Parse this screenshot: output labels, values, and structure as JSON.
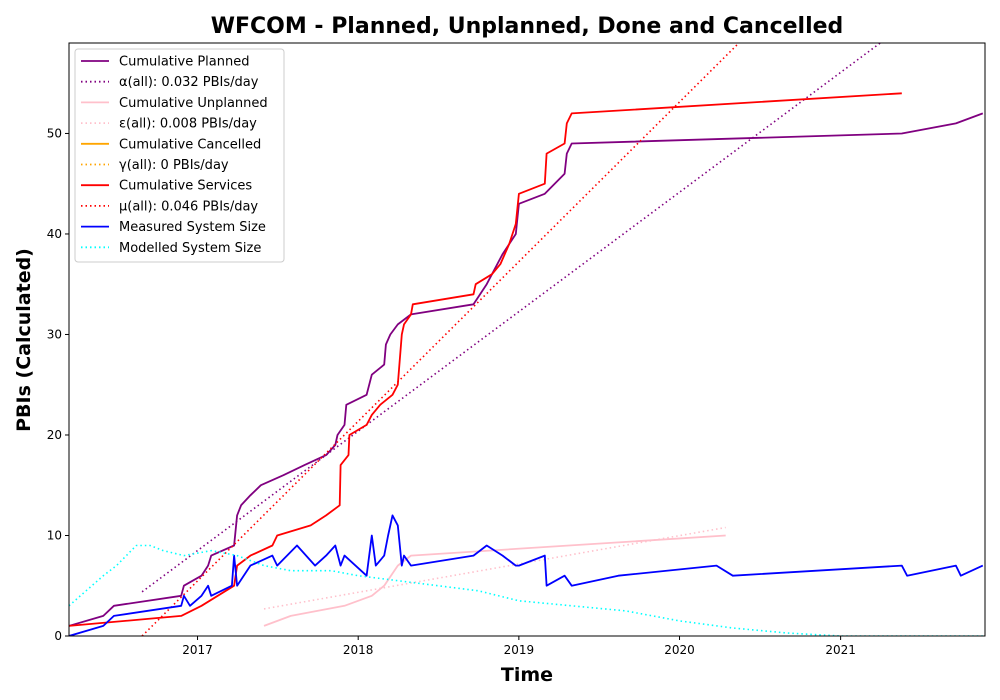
{
  "chart_data": {
    "type": "line",
    "title": "WFCOM - Planned, Unplanned, Done  and Cancelled",
    "xlabel": "Time",
    "ylabel": "PBIs (Calculated)",
    "xlim": [
      "2016-03-15",
      "2021-11-25"
    ],
    "ylim": [
      0,
      59
    ],
    "x_ticks": [
      "2017",
      "2018",
      "2019",
      "2020",
      "2021"
    ],
    "y_ticks": [
      0,
      10,
      20,
      30,
      40,
      50
    ],
    "grid": false,
    "legend_placement": "top-left",
    "series": [
      {
        "name": "Cumulative Planned",
        "color": "#800080",
        "style": "solid",
        "points": [
          [
            "2016-03-15",
            1
          ],
          [
            "2016-06-01",
            2
          ],
          [
            "2016-06-25",
            3
          ],
          [
            "2016-11-25",
            4
          ],
          [
            "2016-12-01",
            5
          ],
          [
            "2017-01-10",
            6
          ],
          [
            "2017-01-25",
            7
          ],
          [
            "2017-02-01",
            8
          ],
          [
            "2017-03-25",
            9
          ],
          [
            "2017-04-01",
            12
          ],
          [
            "2017-04-10",
            13
          ],
          [
            "2017-05-01",
            14
          ],
          [
            "2017-05-25",
            15
          ],
          [
            "2017-07-15",
            16
          ],
          [
            "2017-09-01",
            17
          ],
          [
            "2017-10-20",
            18
          ],
          [
            "2017-11-10",
            19
          ],
          [
            "2017-11-15",
            20
          ],
          [
            "2017-12-01",
            21
          ],
          [
            "2017-12-05",
            23
          ],
          [
            "2018-01-20",
            24
          ],
          [
            "2018-02-01",
            26
          ],
          [
            "2018-03-01",
            27
          ],
          [
            "2018-03-05",
            29
          ],
          [
            "2018-03-15",
            30
          ],
          [
            "2018-04-01",
            31
          ],
          [
            "2018-05-01",
            32
          ],
          [
            "2018-09-20",
            33
          ],
          [
            "2018-10-20",
            35
          ],
          [
            "2018-11-25",
            38
          ],
          [
            "2018-12-25",
            40
          ],
          [
            "2019-01-01",
            43
          ],
          [
            "2019-03-01",
            44
          ],
          [
            "2019-04-15",
            46
          ],
          [
            "2019-04-20",
            48
          ],
          [
            "2019-05-01",
            49
          ],
          [
            "2021-05-20",
            50
          ],
          [
            "2021-09-20",
            51
          ],
          [
            "2021-11-20",
            52
          ]
        ]
      },
      {
        "name": "α(all): 0.032 PBIs/day",
        "color": "#800080",
        "style": "dotted",
        "points": [
          [
            "2016-08-28",
            4.4
          ],
          [
            "2021-04-01",
            59
          ]
        ]
      },
      {
        "name": "Cumulative Unplanned",
        "color": "#ffc0cb",
        "style": "solid",
        "points": [
          [
            "2017-06-01",
            1
          ],
          [
            "2017-08-01",
            2
          ],
          [
            "2017-12-01",
            3
          ],
          [
            "2018-02-01",
            4
          ],
          [
            "2018-03-01",
            5
          ],
          [
            "2018-04-01",
            7
          ],
          [
            "2018-05-01",
            8
          ],
          [
            "2020-04-15",
            10
          ]
        ]
      },
      {
        "name": "ε(all): 0.008 PBIs/day",
        "color": "#ffc0cb",
        "style": "dotted",
        "points": [
          [
            "2017-06-01",
            2.7
          ],
          [
            "2020-04-15",
            10.8
          ]
        ]
      },
      {
        "name": "Cumulative Cancelled",
        "color": "#ffa500",
        "style": "solid",
        "points": []
      },
      {
        "name": "γ(all): 0 PBIs/day",
        "color": "#ffa500",
        "style": "dotted",
        "points": []
      },
      {
        "name": "Cumulative Services",
        "color": "#ff0000",
        "style": "solid",
        "points": [
          [
            "2016-03-15",
            1
          ],
          [
            "2016-11-25",
            2
          ],
          [
            "2017-01-10",
            3
          ],
          [
            "2017-03-25",
            5
          ],
          [
            "2017-04-01",
            7
          ],
          [
            "2017-05-01",
            8
          ],
          [
            "2017-06-20",
            9
          ],
          [
            "2017-07-01",
            10
          ],
          [
            "2017-09-15",
            11
          ],
          [
            "2017-10-20",
            12
          ],
          [
            "2017-11-20",
            13
          ],
          [
            "2017-11-22",
            17
          ],
          [
            "2017-12-10",
            18
          ],
          [
            "2017-12-12",
            20
          ],
          [
            "2018-01-20",
            21
          ],
          [
            "2018-02-01",
            22
          ],
          [
            "2018-02-20",
            23
          ],
          [
            "2018-03-20",
            24
          ],
          [
            "2018-04-01",
            25
          ],
          [
            "2018-04-10",
            30
          ],
          [
            "2018-04-15",
            31
          ],
          [
            "2018-05-01",
            32
          ],
          [
            "2018-05-05",
            33
          ],
          [
            "2018-09-20",
            34
          ],
          [
            "2018-09-25",
            35
          ],
          [
            "2018-11-01",
            36
          ],
          [
            "2018-11-20",
            37
          ],
          [
            "2018-12-10",
            39
          ],
          [
            "2018-12-25",
            41
          ],
          [
            "2019-01-01",
            44
          ],
          [
            "2019-03-01",
            45
          ],
          [
            "2019-03-05",
            48
          ],
          [
            "2019-04-15",
            49
          ],
          [
            "2019-04-20",
            51
          ],
          [
            "2019-05-01",
            52
          ],
          [
            "2021-05-20",
            54
          ]
        ]
      },
      {
        "name": "μ(all): 0.046 PBIs/day",
        "color": "#ff0000",
        "style": "dotted",
        "points": [
          [
            "2016-08-28",
            0
          ],
          [
            "2020-05-15",
            59
          ]
        ]
      },
      {
        "name": "Measured System Size",
        "color": "#0000ff",
        "style": "solid",
        "points": [
          [
            "2016-03-15",
            0
          ],
          [
            "2016-06-01",
            1
          ],
          [
            "2016-06-25",
            2
          ],
          [
            "2016-11-25",
            3
          ],
          [
            "2016-12-01",
            4
          ],
          [
            "2016-12-15",
            3
          ],
          [
            "2017-01-10",
            4
          ],
          [
            "2017-01-25",
            5
          ],
          [
            "2017-02-01",
            4
          ],
          [
            "2017-03-20",
            5
          ],
          [
            "2017-03-25",
            8
          ],
          [
            "2017-04-01",
            5
          ],
          [
            "2017-05-01",
            7
          ],
          [
            "2017-06-20",
            8
          ],
          [
            "2017-07-01",
            7
          ],
          [
            "2017-08-15",
            9
          ],
          [
            "2017-09-25",
            7
          ],
          [
            "2017-10-20",
            8
          ],
          [
            "2017-11-10",
            9
          ],
          [
            "2017-11-22",
            7
          ],
          [
            "2017-12-01",
            8
          ],
          [
            "2018-01-20",
            6
          ],
          [
            "2018-02-01",
            10
          ],
          [
            "2018-02-10",
            7
          ],
          [
            "2018-03-01",
            8
          ],
          [
            "2018-03-10",
            10
          ],
          [
            "2018-03-20",
            12
          ],
          [
            "2018-04-01",
            11
          ],
          [
            "2018-04-10",
            7
          ],
          [
            "2018-04-15",
            8
          ],
          [
            "2018-05-01",
            7
          ],
          [
            "2018-09-20",
            8
          ],
          [
            "2018-10-20",
            9
          ],
          [
            "2018-11-25",
            8
          ],
          [
            "2018-12-25",
            7
          ],
          [
            "2019-01-01",
            7
          ],
          [
            "2019-03-01",
            8
          ],
          [
            "2019-03-05",
            5
          ],
          [
            "2019-04-15",
            6
          ],
          [
            "2019-05-01",
            5
          ],
          [
            "2019-08-15",
            6
          ],
          [
            "2020-03-25",
            7
          ],
          [
            "2020-05-01",
            6
          ],
          [
            "2021-05-20",
            7
          ],
          [
            "2021-06-01",
            6
          ],
          [
            "2021-09-20",
            7
          ],
          [
            "2021-10-01",
            6
          ],
          [
            "2021-11-20",
            7
          ]
        ]
      },
      {
        "name": "Modelled System Size",
        "color": "#00ffff",
        "style": "dotted",
        "points": [
          [
            "2016-03-15",
            3
          ],
          [
            "2016-06-01",
            6
          ],
          [
            "2016-07-01",
            7
          ],
          [
            "2016-08-15",
            9
          ],
          [
            "2016-09-15",
            9
          ],
          [
            "2016-10-15",
            8.5
          ],
          [
            "2016-12-01",
            8
          ],
          [
            "2017-02-01",
            8.5
          ],
          [
            "2017-04-01",
            8
          ],
          [
            "2017-06-01",
            7
          ],
          [
            "2017-08-01",
            6.5
          ],
          [
            "2017-11-01",
            6.5
          ],
          [
            "2018-01-01",
            6
          ],
          [
            "2018-04-01",
            5.5
          ],
          [
            "2018-07-01",
            5
          ],
          [
            "2018-10-01",
            4.5
          ],
          [
            "2019-01-01",
            3.5
          ],
          [
            "2019-05-01",
            3
          ],
          [
            "2019-09-01",
            2.5
          ],
          [
            "2020-01-01",
            1.5
          ],
          [
            "2020-05-01",
            0.8
          ],
          [
            "2020-09-01",
            0.3
          ],
          [
            "2021-01-01",
            0
          ],
          [
            "2021-11-25",
            0
          ]
        ]
      }
    ]
  }
}
